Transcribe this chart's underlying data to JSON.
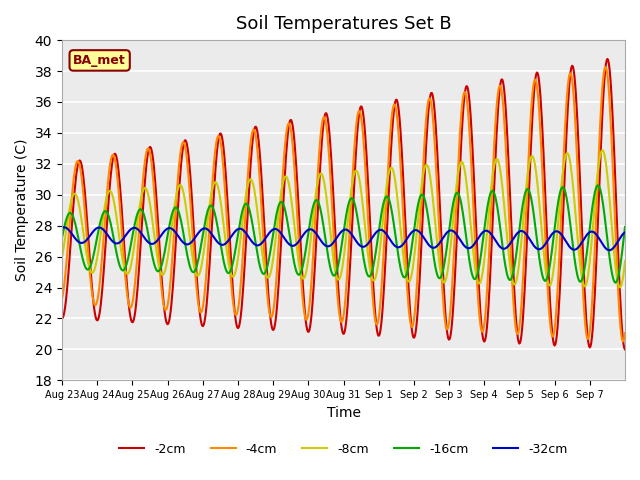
{
  "title": "Soil Temperatures Set B",
  "xlabel": "Time",
  "ylabel": "Soil Temperature (C)",
  "ylim": [
    18,
    40
  ],
  "yticks": [
    18,
    20,
    22,
    24,
    26,
    28,
    30,
    32,
    34,
    36,
    38,
    40
  ],
  "legend_labels": [
    "-2cm",
    "-4cm",
    "-8cm",
    "-16cm",
    "-32cm"
  ],
  "legend_colors": [
    "#cc0000",
    "#ff8800",
    "#cccc00",
    "#00aa00",
    "#0000cc"
  ],
  "line_widths": [
    1.5,
    1.5,
    1.5,
    1.5,
    1.5
  ],
  "annotation_text": "BA_met",
  "annotation_bg": "#ffff99",
  "annotation_fg": "#880000",
  "x_tick_labels": [
    "Aug 23",
    "Aug 24",
    "Aug 25",
    "Aug 26",
    "Aug 27",
    "Aug 28",
    "Aug 29",
    "Aug 30",
    "Aug 31",
    "Sep 1",
    "Sep 2",
    "Sep 3",
    "Sep 4",
    "Sep 5",
    "Sep 6",
    "Sep 7"
  ]
}
